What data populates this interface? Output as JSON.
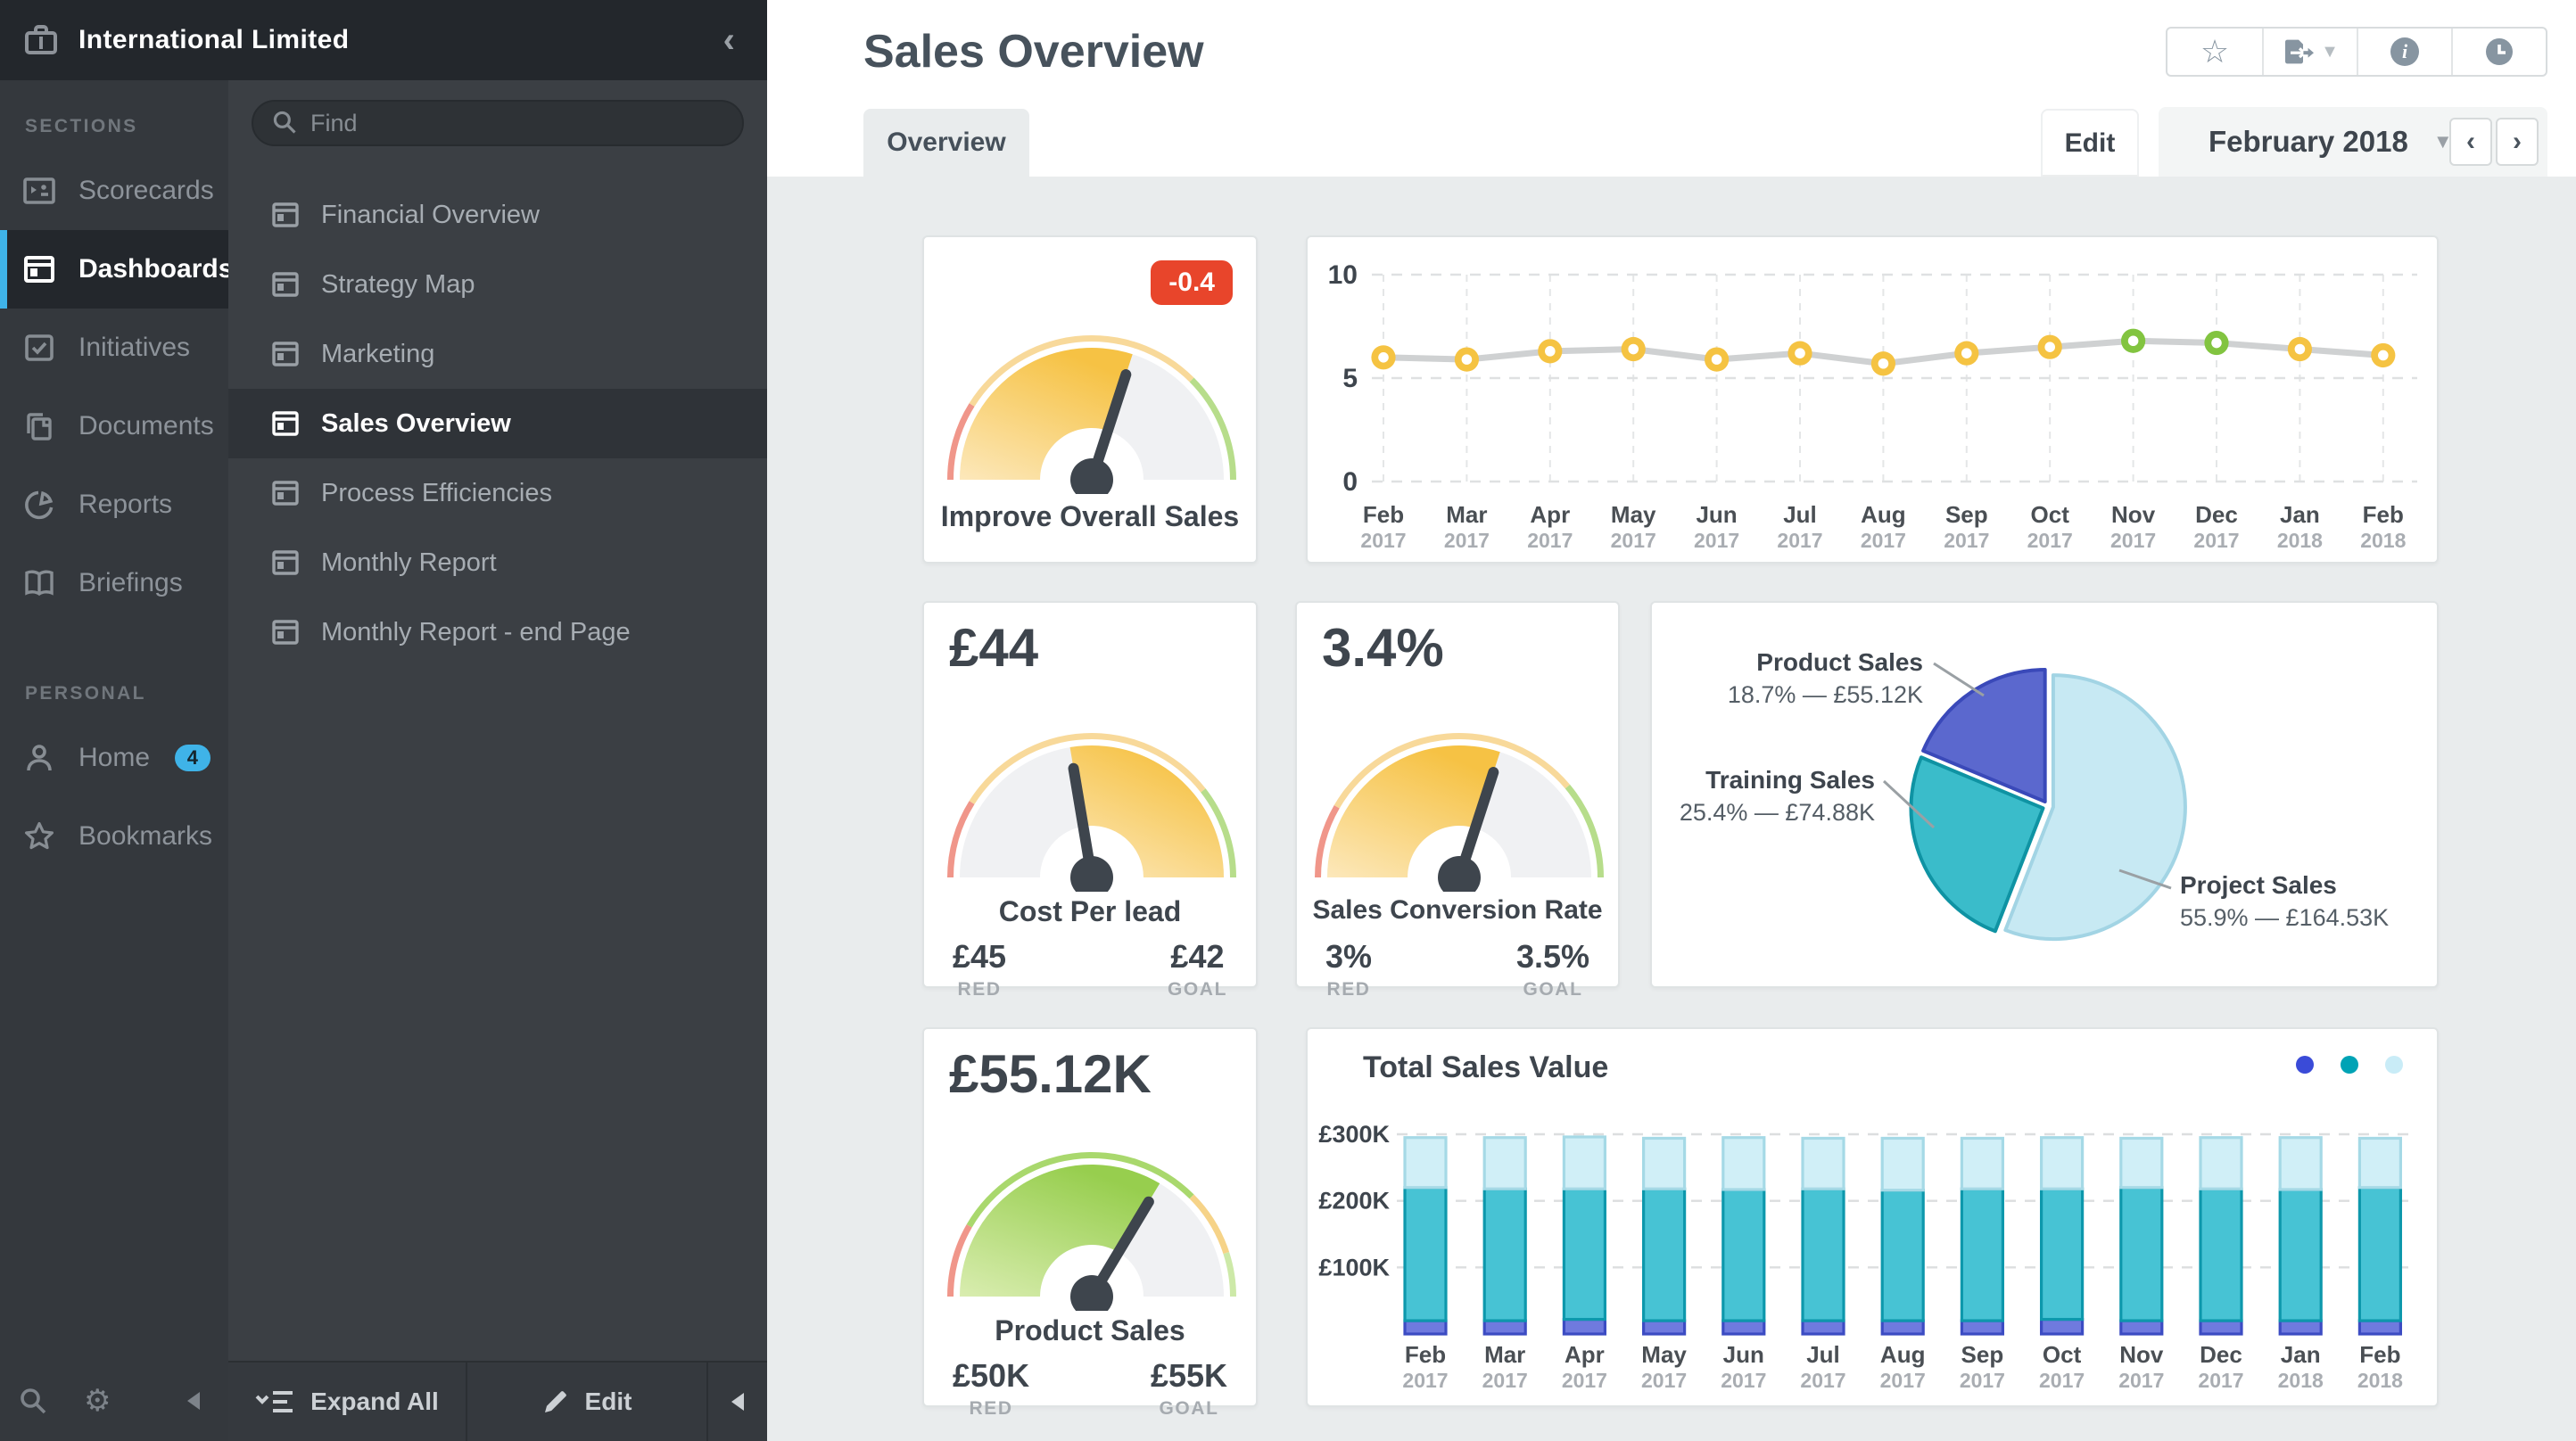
{
  "app": {
    "title": "International Limited"
  },
  "sidebar": {
    "sections_label": "SECTIONS",
    "personal_label": "PERSONAL",
    "items": [
      {
        "label": "Scorecards",
        "icon": "scorecards-icon",
        "selected": false
      },
      {
        "label": "Dashboards",
        "icon": "dashboards-icon",
        "selected": true
      },
      {
        "label": "Initiatives",
        "icon": "initiatives-icon",
        "selected": false
      },
      {
        "label": "Documents",
        "icon": "documents-icon",
        "selected": false
      },
      {
        "label": "Reports",
        "icon": "reports-icon",
        "selected": false
      },
      {
        "label": "Briefings",
        "icon": "briefings-icon",
        "selected": false
      }
    ],
    "personal_items": [
      {
        "label": "Home",
        "icon": "home-user-icon",
        "badge": "4"
      },
      {
        "label": "Bookmarks",
        "icon": "bookmarks-star-icon",
        "badge": ""
      }
    ]
  },
  "nav": {
    "find_placeholder": "Find",
    "items": [
      "Financial Overview",
      "Strategy Map",
      "Marketing",
      "Sales Overview",
      "Process Efficiencies",
      "Monthly Report",
      "Monthly Report - end Page"
    ],
    "selected_item": "Sales Overview",
    "expand_all_label": "Expand All",
    "edit_label": "Edit"
  },
  "header": {
    "page_title": "Sales Overview",
    "tab_label": "Overview",
    "edit_label": "Edit",
    "period_label": "February 2018",
    "prev_label": "‹",
    "next_label": "›"
  },
  "months": [
    {
      "m": "Feb",
      "y": "2017"
    },
    {
      "m": "Mar",
      "y": "2017"
    },
    {
      "m": "Apr",
      "y": "2017"
    },
    {
      "m": "May",
      "y": "2017"
    },
    {
      "m": "Jun",
      "y": "2017"
    },
    {
      "m": "Jul",
      "y": "2017"
    },
    {
      "m": "Aug",
      "y": "2017"
    },
    {
      "m": "Sep",
      "y": "2017"
    },
    {
      "m": "Oct",
      "y": "2017"
    },
    {
      "m": "Nov",
      "y": "2017"
    },
    {
      "m": "Dec",
      "y": "2017"
    },
    {
      "m": "Jan",
      "y": "2018"
    },
    {
      "m": "Feb",
      "y": "2018"
    }
  ],
  "gauges": [
    {
      "name": "improve-overall-sales",
      "title": "Improve Overall Sales",
      "badge": "-0.4",
      "value_deg": 72,
      "fill": "amber",
      "fill_side": "left",
      "ring": [
        [
          180,
          148,
          "ring_red"
        ],
        [
          148,
          45,
          "ring_amber"
        ],
        [
          45,
          0,
          "ring_green"
        ]
      ]
    },
    {
      "name": "cost-per-lead",
      "value": "£44",
      "title": "Cost Per lead",
      "red_value": "£45",
      "red_label": "RED",
      "goal_value": "£42",
      "goal_label": "GOAL",
      "value_deg": 99.5,
      "fill": "amber",
      "fill_side": "right",
      "ring": [
        [
          180,
          148,
          "ring_red"
        ],
        [
          148,
          38,
          "ring_amber"
        ],
        [
          38,
          0,
          "ring_green"
        ]
      ]
    },
    {
      "name": "sales-conversion-rate",
      "value": "3.4%",
      "title": "Sales Conversion Rate",
      "red_value": "3%",
      "red_label": "RED",
      "goal_value": "3.5%",
      "goal_label": "GOAL",
      "value_deg": 72,
      "fill": "amber",
      "fill_side": "left",
      "ring": [
        [
          180,
          150,
          "ring_red"
        ],
        [
          150,
          40,
          "ring_amber"
        ],
        [
          40,
          0,
          "ring_green"
        ]
      ]
    },
    {
      "name": "product-sales",
      "value": "£55.12K",
      "title": "Product Sales",
      "red_value": "£50K",
      "red_label": "RED",
      "goal_value": "£55K",
      "goal_label": "GOAL",
      "value_deg": 59,
      "fill": "green",
      "fill_side": "left",
      "ring": [
        [
          180,
          150,
          "ring_red"
        ],
        [
          150,
          45,
          "ring_green2"
        ],
        [
          45,
          18,
          "ring_amber2"
        ],
        [
          18,
          0,
          "ring_palegreen"
        ]
      ]
    }
  ],
  "chart_data": [
    {
      "type": "line",
      "title": "Improve Overall Sales monthly score",
      "ylim": [
        0,
        10
      ],
      "yticks": [
        10,
        5,
        0
      ],
      "values": [
        6.0,
        5.9,
        6.3,
        6.4,
        5.9,
        6.2,
        5.7,
        6.2,
        6.5,
        6.8,
        6.7,
        6.4,
        6.1
      ],
      "point_colors": [
        "yellow",
        "yellow",
        "yellow",
        "yellow",
        "yellow",
        "yellow",
        "yellow",
        "yellow",
        "yellow",
        "green",
        "green",
        "yellow",
        "yellow"
      ],
      "legend_position": "none",
      "grid": true
    },
    {
      "type": "pie",
      "title": "Sales mix",
      "slices": [
        {
          "name": "Project Sales",
          "pct": 55.9,
          "amount": "£164.53K",
          "color_key": "pie_light",
          "stroke_key": "pie_light_stroke"
        },
        {
          "name": "Training Sales",
          "pct": 25.4,
          "amount": "£74.88K",
          "color_key": "pie_teal",
          "stroke_key": "pie_teal_stroke"
        },
        {
          "name": "Product Sales",
          "pct": 18.7,
          "amount": "£55.12K",
          "color_key": "pie_indigo",
          "stroke_key": "pie_indigo_stroke"
        }
      ],
      "start": "top",
      "clockwise": true,
      "value_separator": "—"
    },
    {
      "type": "bar",
      "title": "Total Sales Value",
      "stacked": true,
      "ylim": [
        0,
        320
      ],
      "ytick_labels": [
        "£100K",
        "£200K",
        "£300K"
      ],
      "ytick_values": [
        100,
        200,
        300
      ],
      "grid": true,
      "series": [
        {
          "name": "bottom-indigo",
          "color_key": "bar_indigo",
          "stroke_key": "bar_indigo_stroke",
          "values": [
            20,
            20,
            22,
            20,
            20,
            20,
            20,
            20,
            22,
            20,
            20,
            20,
            20
          ]
        },
        {
          "name": "middle-teal",
          "color_key": "bar_teal",
          "stroke_key": "bar_teal_stroke",
          "values": [
            200,
            198,
            196,
            198,
            197,
            198,
            196,
            198,
            196,
            200,
            198,
            197,
            200
          ]
        },
        {
          "name": "top-lightblue",
          "color_key": "bar_light",
          "stroke_key": "bar_light_stroke",
          "values": [
            75,
            77,
            78,
            76,
            78,
            76,
            78,
            76,
            77,
            74,
            77,
            78,
            74
          ]
        }
      ],
      "legend_colors": [
        "legend_indigo",
        "legend_teal",
        "legend_light"
      ]
    }
  ],
  "colors": {
    "accent_blue": "#3fb3e8",
    "badge_red": "#e8452b",
    "amber": "#f6c244",
    "amber_light": "#fce8bb",
    "green": "#97ce4e",
    "green_light": "#d9edb0",
    "track": "#f0f1f3",
    "ring_red": "#f0968a",
    "ring_amber": "#f8d99a",
    "ring_green": "#b7dd8b",
    "ring_green2": "#a9d86d",
    "ring_amber2": "#f6d388",
    "ring_palegreen": "#cde9a8",
    "needle": "#3e454d",
    "line_gray": "#cfd1d2",
    "marker_yellow": "#f5c342",
    "marker_green": "#82c440",
    "pie_light": "#c7e9f3",
    "pie_light_stroke": "#a2d4e4",
    "pie_teal": "#3abcca",
    "pie_teal_stroke": "#0f93a3",
    "pie_indigo": "#5b68ce",
    "pie_indigo_stroke": "#3a49b9",
    "bar_teal": "#47c3d4",
    "bar_teal_stroke": "#0d98ac",
    "bar_light": "#d0eff7",
    "bar_light_stroke": "#a5d9e6",
    "bar_indigo": "#6f7ade",
    "bar_indigo_stroke": "#3c4cc3",
    "legend_indigo": "#3a4bd8",
    "legend_teal": "#00a3b5",
    "legend_light": "#c9ecf7"
  }
}
